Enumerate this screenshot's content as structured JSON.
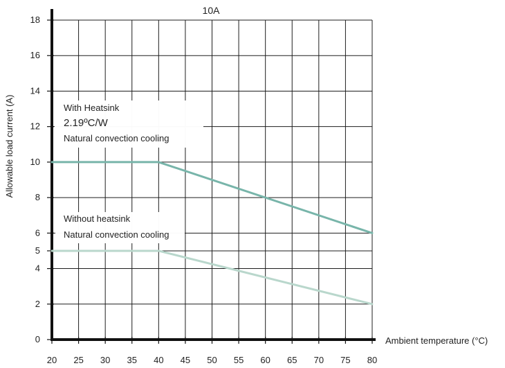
{
  "chart_data": {
    "type": "line",
    "title": "10A",
    "xlabel": "Ambient temperature (°C)",
    "ylabel": "Allowable load current (A)",
    "x_ticks": [
      20,
      25,
      30,
      35,
      40,
      45,
      50,
      55,
      60,
      65,
      70,
      75,
      80
    ],
    "y_ticks": [
      0,
      2,
      4,
      5,
      6,
      8,
      10,
      12,
      14,
      16,
      18
    ],
    "xlim": [
      20,
      80
    ],
    "ylim": [
      0,
      18
    ],
    "grid": true,
    "series": [
      {
        "color": "#78b5aa",
        "x": [
          20,
          40,
          80
        ],
        "y": [
          10,
          10,
          6
        ]
      },
      {
        "color": "#b9d7cc",
        "x": [
          20,
          40,
          80
        ],
        "y": [
          5,
          5,
          2
        ]
      }
    ],
    "annotations": [
      {
        "lines": [
          "With Heatsink",
          "2.19ºC/W",
          "Natural convection cooling"
        ]
      },
      {
        "lines": [
          "Without heatsink",
          "Natural convection cooling"
        ]
      }
    ]
  }
}
